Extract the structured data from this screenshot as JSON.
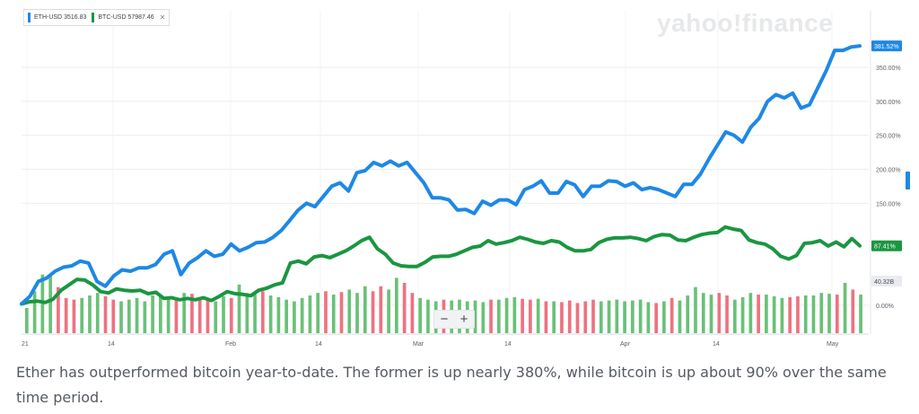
{
  "watermark": "yahoo!finance",
  "caption": "Ether has outperformed bitcoin year-to-date. The former is up nearly 380%, while bitcoin is up about 90% over the same time period.",
  "zoom": {
    "minus": "−",
    "plus": "+"
  },
  "colors": {
    "eth": "#1e88e5",
    "btc": "#1a9641",
    "vol_up": "#69c177",
    "vol_down": "#ee7280"
  },
  "chart_data": {
    "type": "line",
    "x_tick_labels": [
      "21",
      "14",
      "Feb",
      "14",
      "Mar",
      "14",
      "Apr",
      "14",
      "May"
    ],
    "y_tick_labels": [
      "350.00%",
      "300.00%",
      "250.00%",
      "200.00%",
      "150.00%",
      "0.00%"
    ],
    "ylim": [
      -20,
      420
    ],
    "legend": [
      {
        "symbol": "ETH-USD",
        "value": "3516.83"
      },
      {
        "symbol": "BTC-USD",
        "value": "57987.46"
      }
    ],
    "end_labels": {
      "eth": "381.52%",
      "btc": "87.41%",
      "volume": "40.32B"
    },
    "series": [
      {
        "name": "ETH-USD",
        "values": [
          2,
          13,
          35,
          40,
          50,
          56,
          58,
          65,
          62,
          35,
          28,
          43,
          52,
          50,
          55,
          55,
          60,
          75,
          80,
          45,
          62,
          70,
          80,
          72,
          75,
          90,
          80,
          85,
          92,
          93,
          100,
          110,
          125,
          140,
          150,
          145,
          160,
          175,
          180,
          168,
          195,
          198,
          210,
          205,
          212,
          205,
          210,
          195,
          180,
          158,
          158,
          155,
          140,
          141,
          135,
          153,
          147,
          155,
          155,
          148,
          170,
          175,
          183,
          165,
          165,
          182,
          177,
          160,
          175,
          175,
          183,
          182,
          175,
          180,
          170,
          173,
          170,
          165,
          160,
          178,
          178,
          193,
          215,
          235,
          255,
          250,
          240,
          262,
          275,
          300,
          310,
          305,
          312,
          290,
          295,
          320,
          345,
          375,
          375,
          380,
          381.5
        ]
      },
      {
        "name": "BTC-USD",
        "values": [
          2,
          5,
          6,
          4,
          9,
          22,
          30,
          38,
          37,
          30,
          20,
          18,
          24,
          22,
          21,
          22,
          17,
          19,
          10,
          11,
          8,
          10,
          8,
          11,
          7,
          13,
          20,
          17,
          16,
          14,
          22,
          25,
          30,
          33,
          62,
          65,
          61,
          71,
          73,
          70,
          75,
          80,
          87,
          95,
          100,
          83,
          75,
          62,
          58,
          57,
          57,
          63,
          71,
          72,
          72,
          75,
          80,
          85,
          87,
          95,
          90,
          92,
          95,
          100,
          97,
          93,
          91,
          95,
          93,
          85,
          80,
          80,
          82,
          92,
          97,
          99,
          99,
          100,
          98,
          95,
          101,
          104,
          103,
          96,
          95,
          100,
          104,
          106,
          107,
          115,
          112,
          110,
          96,
          92,
          90,
          83,
          72,
          68,
          73,
          91,
          92,
          95,
          87,
          93,
          86,
          98,
          87.4
        ]
      },
      {
        "name": "Volume",
        "up": [
          1,
          1,
          1,
          1,
          0,
          0,
          0,
          1,
          1,
          1,
          0,
          0,
          1,
          1,
          1,
          1,
          1,
          1,
          1,
          0,
          1,
          0,
          0,
          0,
          1,
          1,
          0,
          1,
          1,
          1,
          0,
          1,
          1,
          1,
          1,
          1,
          1,
          1,
          0,
          1,
          0,
          1,
          1,
          1,
          0,
          0,
          1,
          1,
          0,
          0,
          1,
          1,
          1,
          0,
          1,
          1,
          1,
          1,
          1,
          0,
          1,
          1,
          1,
          0,
          0,
          1,
          0,
          1,
          0,
          0,
          0,
          0,
          0,
          1,
          1,
          1,
          1,
          1,
          1,
          1,
          0,
          1,
          0,
          1,
          1,
          1,
          1,
          1,
          0,
          0,
          1,
          1,
          1,
          0,
          1,
          1,
          1,
          0,
          0,
          1,
          1,
          1,
          1,
          0,
          1,
          0,
          1
        ],
        "values": [
          30,
          50,
          70,
          68,
          55,
          42,
          40,
          42,
          45,
          48,
          44,
          40,
          38,
          40,
          42,
          38,
          45,
          44,
          42,
          40,
          48,
          47,
          43,
          40,
          38,
          44,
          42,
          58,
          48,
          46,
          50,
          45,
          43,
          40,
          38,
          42,
          45,
          48,
          50,
          46,
          49,
          52,
          48,
          56,
          50,
          56,
          52,
          66,
          60,
          48,
          42,
          40,
          38,
          40,
          39,
          40,
          38,
          39,
          37,
          40,
          40,
          42,
          43,
          41,
          40,
          41,
          38,
          38,
          37,
          39,
          36,
          38,
          40,
          38,
          39,
          40,
          38,
          39,
          40,
          37,
          36,
          38,
          42,
          39,
          45,
          55,
          48,
          46,
          48,
          45,
          40,
          43,
          48,
          46,
          46,
          44,
          42,
          43,
          44,
          45,
          45,
          48,
          47,
          46,
          60,
          52,
          46
        ]
      }
    ]
  }
}
